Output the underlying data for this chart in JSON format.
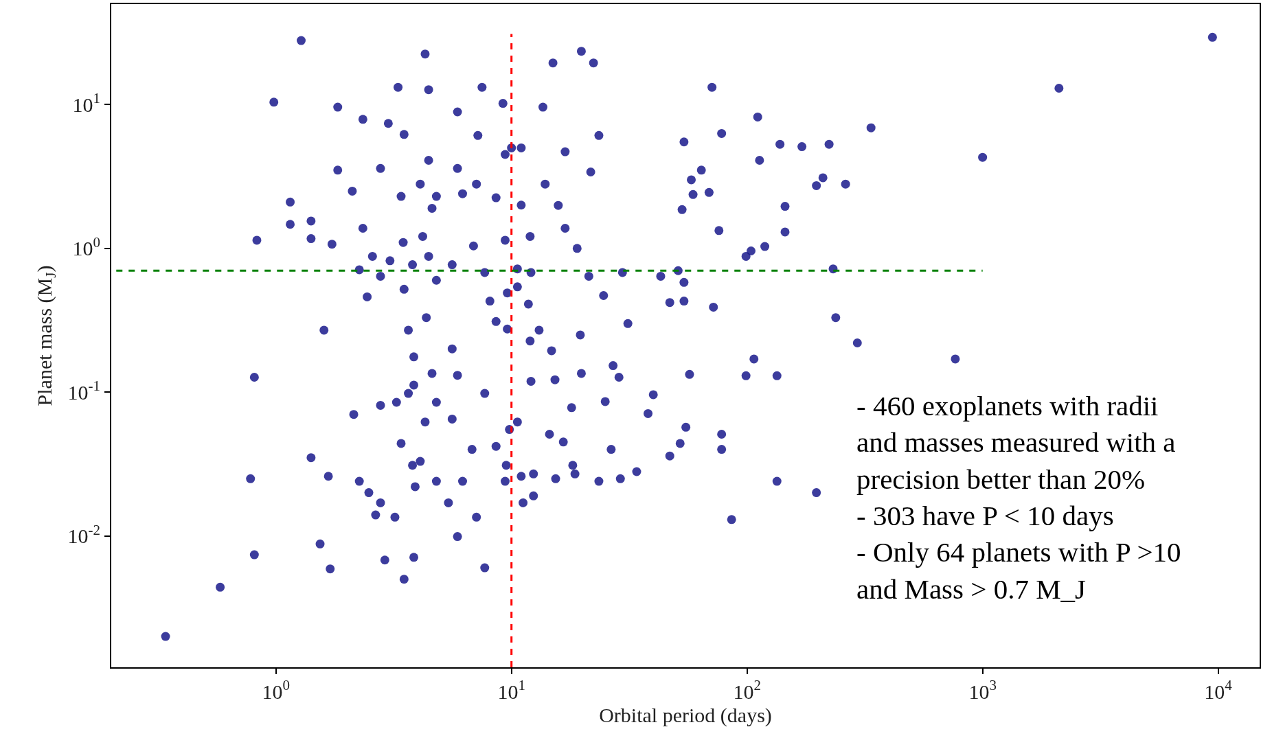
{
  "chart_data": {
    "type": "scatter",
    "xlabel": "Orbital period (days)",
    "ylabel": "Planet mass (M$_{J}$)",
    "annotations": [
      "- 460 exoplanets with radii",
      "and masses measured with a",
      "precision better than 20%",
      "- 303 have P < 10 days",
      "- Only 64 planets with P >10",
      "and Mass > 0.7 M_J"
    ],
    "log": "xy",
    "grid": false,
    "xlim": [
      0.2,
      15000
    ],
    "ylim": [
      0.00122,
      50
    ],
    "xticks": [
      {
        "value": 1,
        "label": "10$^{0}$"
      },
      {
        "value": 10,
        "label": "10$^{1}$"
      },
      {
        "value": 100,
        "label": "10$^{2}$"
      },
      {
        "value": 1000,
        "label": "10$^{3}$"
      },
      {
        "value": 10000,
        "label": "10$^{4}$"
      }
    ],
    "yticks": [
      {
        "value": 0.01,
        "label": "10$^{-2}$"
      },
      {
        "value": 0.1,
        "label": "10$^{-1}$"
      },
      {
        "value": 1,
        "label": "10$^{0}$"
      },
      {
        "value": 10,
        "label": "10$^{1}$"
      }
    ],
    "series": [
      {
        "color": "#1a1a8c",
        "marker": "circle",
        "x": [
          0.34,
          0.58,
          0.81,
          0.78,
          0.81,
          0.83,
          0.98,
          1.28,
          1.15,
          1.15,
          1.41,
          1.41,
          1.6,
          1.41,
          1.67,
          1.54,
          1.7,
          1.83,
          1.83,
          1.73,
          2.11,
          2.34,
          2.34,
          2.26,
          2.44,
          2.14,
          2.26,
          2.48,
          2.65,
          2.78,
          2.9,
          3.2,
          2.78,
          3.0,
          3.3,
          3.5,
          3.4,
          2.57,
          2.78,
          3.05,
          3.5,
          3.8,
          3.47,
          3.65,
          3.85,
          3.85,
          2.78,
          3.25,
          3.65,
          3.4,
          3.8,
          4.1,
          3.9,
          3.85,
          3.5,
          4.3,
          4.45,
          4.45,
          4.1,
          4.8,
          4.6,
          4.2,
          4.45,
          4.8,
          4.35,
          4.6,
          4.8,
          4.3,
          4.8,
          5.4,
          5.9,
          5.9,
          5.9,
          6.2,
          5.6,
          5.6,
          5.9,
          5.6,
          6.2,
          6.8,
          6.9,
          7.2,
          7.5,
          7.1,
          7.7,
          7.7,
          7.1,
          7.7,
          8.1,
          8.6,
          8.6,
          8.6,
          9.2,
          9.4,
          9.4,
          9.6,
          9.5,
          9.4,
          9.8,
          9.6,
          10,
          10.6,
          10.6,
          11,
          11,
          10.6,
          11,
          11.2,
          11.8,
          12,
          12.1,
          12.4,
          12.4,
          12,
          12.1,
          13.1,
          13.6,
          15,
          13.9,
          14.8,
          14.5,
          15.3,
          15.4,
          15.8,
          16.9,
          16.9,
          16.6,
          18,
          18.2,
          18.6,
          19,
          19.6,
          19.8,
          19.8,
          21.3,
          21.7,
          22.3,
          23.5,
          23.5,
          24.6,
          25,
          26.5,
          27,
          28.6,
          29.6,
          31.2,
          29,
          34,
          40,
          43,
          38,
          47,
          47,
          51,
          53,
          54,
          54,
          54,
          55,
          52,
          57,
          58,
          59,
          64,
          69,
          71,
          72,
          76,
          78,
          78,
          78,
          86,
          99,
          104,
          107,
          99,
          111,
          113,
          119,
          134,
          134,
          138,
          145,
          145,
          171,
          197,
          197,
          210,
          223,
          232,
          238,
          262,
          294,
          336,
          766,
          1000,
          2110,
          9460
        ],
        "values": [
          0.002,
          0.0044,
          0.0074,
          0.025,
          0.127,
          1.14,
          10.4,
          27.9,
          2.1,
          1.47,
          1.55,
          1.17,
          0.27,
          0.035,
          0.026,
          0.0088,
          0.0059,
          3.5,
          9.6,
          1.07,
          2.5,
          7.9,
          1.38,
          0.71,
          0.46,
          0.07,
          0.024,
          0.02,
          0.014,
          0.017,
          0.0068,
          0.0135,
          3.6,
          7.4,
          13.2,
          6.2,
          2.3,
          0.88,
          0.64,
          0.82,
          0.52,
          0.77,
          1.1,
          0.27,
          0.176,
          0.112,
          0.081,
          0.085,
          0.098,
          0.044,
          0.031,
          0.033,
          0.022,
          0.0071,
          0.005,
          22.5,
          12.7,
          4.1,
          2.8,
          2.3,
          1.9,
          1.21,
          0.88,
          0.6,
          0.33,
          0.135,
          0.085,
          0.062,
          0.024,
          0.017,
          0.0099,
          8.9,
          3.6,
          2.4,
          0.77,
          0.2,
          0.131,
          0.065,
          0.024,
          0.04,
          1.04,
          6.1,
          13.2,
          2.8,
          0.68,
          0.098,
          0.0135,
          0.006,
          0.43,
          0.31,
          0.042,
          2.25,
          10.2,
          4.5,
          1.14,
          0.275,
          0.031,
          0.024,
          0.055,
          0.49,
          5,
          0.72,
          0.54,
          5,
          2,
          0.062,
          0.026,
          0.017,
          0.41,
          0.227,
          0.119,
          0.027,
          0.019,
          1.21,
          0.68,
          0.27,
          9.6,
          19.5,
          2.8,
          0.194,
          0.051,
          0.122,
          0.025,
          1.99,
          1.38,
          4.7,
          0.045,
          0.078,
          0.031,
          0.027,
          1,
          0.25,
          0.135,
          23.5,
          0.64,
          3.4,
          19.5,
          6.1,
          0.024,
          0.47,
          0.086,
          0.04,
          0.153,
          0.127,
          0.68,
          0.3,
          0.025,
          0.028,
          0.096,
          0.64,
          0.071,
          0.42,
          0.036,
          0.7,
          1.86,
          5.5,
          0.58,
          0.43,
          0.057,
          0.044,
          0.133,
          3.0,
          2.37,
          3.5,
          2.45,
          13.2,
          0.39,
          1.33,
          6.3,
          0.051,
          0.04,
          0.013,
          0.88,
          0.96,
          0.17,
          0.13,
          8.2,
          4.1,
          1.03,
          0.13,
          0.024,
          5.3,
          1.96,
          1.3,
          5.1,
          0.02,
          2.73,
          3.1,
          5.3,
          0.72,
          0.33,
          2.8,
          0.22,
          6.9,
          0.17,
          4.3,
          13,
          29.4
        ]
      },
      {
        "type": "line",
        "color": "#ff0000",
        "line_style": "dashed",
        "marker": "none",
        "x": [
          10,
          10
        ],
        "values": [
          0.00122,
          31
        ]
      },
      {
        "type": "line",
        "color": "#008000",
        "line_style": "dashed",
        "marker": "none",
        "x": [
          0.21,
          1000
        ],
        "values": [
          0.7,
          0.7
        ]
      }
    ]
  }
}
